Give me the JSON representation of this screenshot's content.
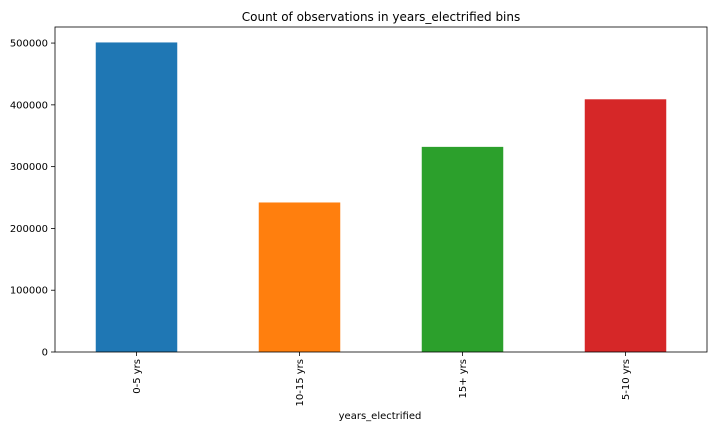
{
  "chart_data": {
    "type": "bar",
    "title": "Count of observations in years_electrified bins",
    "xlabel": "years_electrified",
    "ylabel": "",
    "categories": [
      "0-5 yrs",
      "10-15 yrs",
      "15+ yrs",
      "5-10 yrs"
    ],
    "values": [
      501000,
      242000,
      332000,
      409000
    ],
    "colors": [
      "#1f77b4",
      "#ff7f0e",
      "#2ca02c",
      "#d62728"
    ],
    "ylim": [
      0,
      526000
    ],
    "yticks": [
      0,
      100000,
      200000,
      300000,
      400000,
      500000
    ],
    "ytick_labels": [
      "0",
      "100000",
      "200000",
      "300000",
      "400000",
      "500000"
    ],
    "grid": false,
    "legend": "none"
  }
}
